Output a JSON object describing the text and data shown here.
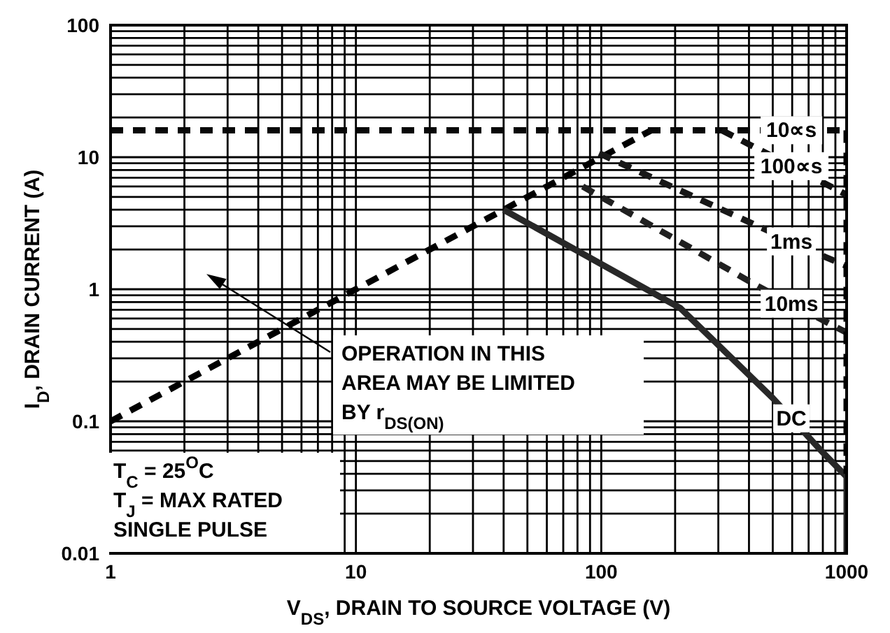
{
  "chart_data": {
    "type": "line",
    "xlabel": "V$_{DS}$, DRAIN TO SOURCE VOLTAGE (V)",
    "ylabel": "I$_{D}$, DRAIN CURRENT (A)",
    "log": "xy",
    "grid": true,
    "legend": false,
    "marker": "none",
    "xlim": [
      1,
      1000
    ],
    "ylim": [
      0.01,
      100
    ],
    "xticks": [
      1,
      {
        "value": 2,
        "label": null
      },
      {
        "value": 3,
        "label": null
      },
      {
        "value": 4,
        "label": null
      },
      {
        "value": 5,
        "label": null
      },
      {
        "value": 6,
        "label": null
      },
      {
        "value": 7,
        "label": null
      },
      {
        "value": 8,
        "label": null
      },
      {
        "value": 9,
        "label": null
      },
      10,
      {
        "value": 20,
        "label": null
      },
      {
        "value": 30,
        "label": null
      },
      {
        "value": 40,
        "label": null
      },
      {
        "value": 50,
        "label": null
      },
      {
        "value": 60,
        "label": null
      },
      {
        "value": 70,
        "label": null
      },
      {
        "value": 80,
        "label": null
      },
      {
        "value": 90,
        "label": null
      },
      100,
      {
        "value": 200,
        "label": null
      },
      {
        "value": 300,
        "label": null
      },
      {
        "value": 400,
        "label": null
      },
      {
        "value": 500,
        "label": null
      },
      {
        "value": 600,
        "label": null
      },
      {
        "value": 700,
        "label": null
      },
      {
        "value": 800,
        "label": null
      },
      {
        "value": 900,
        "label": null
      },
      1000
    ],
    "yticks": [
      0.01,
      {
        "value": 0.02,
        "label": null
      },
      {
        "value": 0.03,
        "label": null
      },
      {
        "value": 0.04,
        "label": null
      },
      {
        "value": 0.05,
        "label": null
      },
      {
        "value": 0.06,
        "label": null
      },
      {
        "value": 0.07,
        "label": null
      },
      {
        "value": 0.08,
        "label": null
      },
      {
        "value": 0.09,
        "label": null
      },
      0.1,
      {
        "value": 0.2,
        "label": null
      },
      {
        "value": 0.3,
        "label": null
      },
      {
        "value": 0.4,
        "label": null
      },
      {
        "value": 0.5,
        "label": null
      },
      {
        "value": 0.6,
        "label": null
      },
      {
        "value": 0.7,
        "label": null
      },
      {
        "value": 0.8,
        "label": null
      },
      {
        "value": 0.9,
        "label": null
      },
      1,
      {
        "value": 2,
        "label": null
      },
      {
        "value": 3,
        "label": null
      },
      {
        "value": 4,
        "label": null
      },
      {
        "value": 5,
        "label": null
      },
      {
        "value": 6,
        "label": null
      },
      {
        "value": 7,
        "label": null
      },
      {
        "value": 8,
        "label": null
      },
      {
        "value": 9,
        "label": null
      },
      10,
      {
        "value": 20,
        "label": null
      },
      {
        "value": 30,
        "label": null
      },
      {
        "value": 40,
        "label": null
      },
      {
        "value": 50,
        "label": null
      },
      {
        "value": 60,
        "label": null
      },
      {
        "value": 70,
        "label": null
      },
      {
        "value": 80,
        "label": null
      },
      {
        "value": 90,
        "label": null
      },
      100
    ],
    "series": [
      {
        "color": "#000000",
        "line_style": "dashed",
        "x": [
          1,
          160
        ],
        "values": [
          0.1,
          16
        ]
      },
      {
        "name": "10∝s",
        "color": "#080808",
        "line_style": "dashed",
        "x": [
          1,
          1000
        ],
        "values": [
          16,
          16
        ]
      },
      {
        "name": "100∝s",
        "color": "#101010",
        "line_style": "dashed",
        "x": [
          310,
          780,
          1000
        ],
        "values": [
          16,
          6.6,
          5.2
        ]
      },
      {
        "name": "1ms",
        "color": "#181818",
        "line_style": "dashed",
        "x": [
          98,
          822,
          1000
        ],
        "values": [
          10.7,
          1.75,
          1.5
        ]
      },
      {
        "name": "10ms",
        "color": "#202020",
        "line_style": "dashed",
        "x": [
          84,
          437,
          850,
          1000
        ],
        "values": [
          6,
          1.05,
          0.55,
          0.47
        ]
      },
      {
        "name": "DC",
        "color": "#282828",
        "line_style": "solid",
        "x": [
          40,
          210,
          500,
          800,
          1000,
          1000
        ],
        "values": [
          4,
          0.72,
          0.15,
          0.058,
          0.038,
          0.01
        ]
      },
      {
        "color": "#000000",
        "line_style": "dashed",
        "x": [
          1000,
          1000
        ],
        "values": [
          16,
          0.04
        ]
      }
    ],
    "annotations": [
      "OPERATION IN THIS\nAREA MAY BE LIMITED\nBY r$_{DS(ON)}$",
      "T$_{C}$ = 25$^{O}$C\nT$_{J}$ = MAX RATED\nSINGLE PULSE"
    ]
  }
}
